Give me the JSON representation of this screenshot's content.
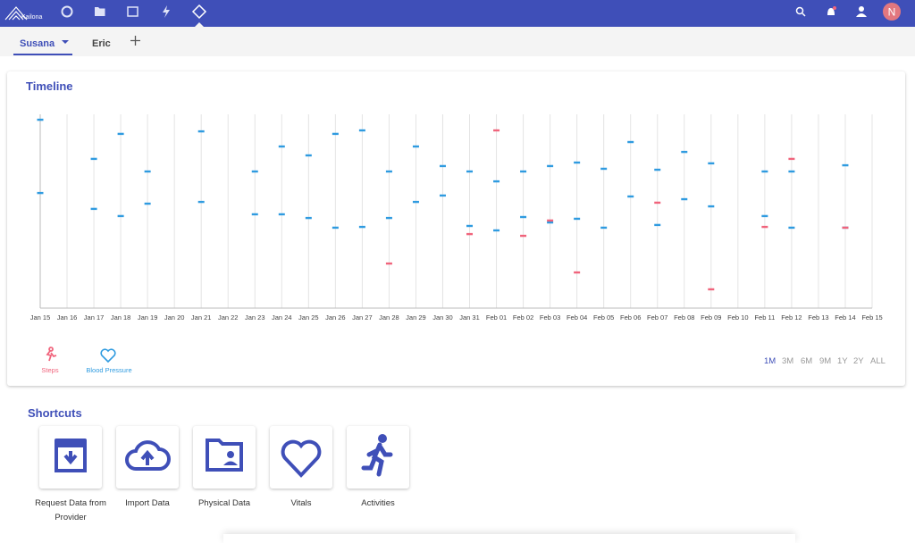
{
  "header": {
    "logo": "Kailona",
    "avatar": "N"
  },
  "tabs": [
    "Susana",
    "Eric"
  ],
  "chart_data": {
    "type": "timeline",
    "title": "Timeline",
    "categories": [
      "Jan 15",
      "Jan 16",
      "Jan 17",
      "Jan 18",
      "Jan 19",
      "Jan 20",
      "Jan 21",
      "Jan 22",
      "Jan 23",
      "Jan 24",
      "Jan 25",
      "Jan 26",
      "Jan 27",
      "Jan 28",
      "Jan 29",
      "Jan 30",
      "Jan 31",
      "Feb 01",
      "Feb 02",
      "Feb 03",
      "Feb 04",
      "Feb 05",
      "Feb 06",
      "Feb 07",
      "Feb 08",
      "Feb 09",
      "Feb 10",
      "Feb 11",
      "Feb 12",
      "Feb 13",
      "Feb 14",
      "Feb 15"
    ],
    "ylim": [
      0,
      100
    ],
    "series": [
      {
        "name": "Steps",
        "color": "#f0647c",
        "x": [
          "Jan 28",
          "Jan 31",
          "Feb 01",
          "Feb 02",
          "Feb 03",
          "Feb 04",
          "Feb 07",
          "Feb 09",
          "Feb 11",
          "Feb 12",
          "Feb 14"
        ],
        "values": [
          23.0,
          38.2,
          91.7,
          37.3,
          45.2,
          18.4,
          54.4,
          9.7,
          41.9,
          77.0,
          41.5
        ]
      },
      {
        "name": "Blood Pressure",
        "color": "#2f9be0",
        "x": [
          "Jan 15",
          "Jan 15",
          "Jan 17",
          "Jan 17",
          "Jan 18",
          "Jan 18",
          "Jan 19",
          "Jan 19",
          "Jan 21",
          "Jan 21",
          "Jan 23",
          "Jan 23",
          "Jan 24",
          "Jan 24",
          "Jan 25",
          "Jan 25",
          "Jan 26",
          "Jan 26",
          "Jan 27",
          "Jan 27",
          "Jan 28",
          "Jan 28",
          "Jan 29",
          "Jan 29",
          "Jan 30",
          "Jan 30",
          "Jan 31",
          "Jan 31",
          "Feb 01",
          "Feb 01",
          "Feb 02",
          "Feb 02",
          "Feb 03",
          "Feb 03",
          "Feb 04",
          "Feb 04",
          "Feb 05",
          "Feb 05",
          "Feb 06",
          "Feb 06",
          "Feb 07",
          "Feb 07",
          "Feb 08",
          "Feb 08",
          "Feb 09",
          "Feb 09",
          "Feb 11",
          "Feb 11",
          "Feb 12",
          "Feb 12",
          "Feb 14",
          "Feb 14"
        ],
        "values": [
          97.2,
          59.4,
          77.0,
          51.2,
          89.9,
          47.5,
          70.5,
          53.9,
          91.2,
          54.8,
          70.5,
          48.4,
          83.4,
          48.4,
          78.8,
          46.5,
          89.9,
          41.5,
          91.7,
          41.9,
          70.5,
          46.5,
          83.4,
          54.8,
          73.3,
          58.1,
          70.5,
          42.4,
          65.4,
          40.1,
          70.5,
          47.0,
          73.3,
          44.2,
          75.1,
          46.1,
          71.9,
          41.5,
          85.7,
          57.6,
          71.4,
          42.9,
          80.6,
          56.2,
          74.7,
          52.5,
          70.5,
          47.5,
          70.5,
          41.5,
          73.7,
          41.5
        ]
      }
    ],
    "ranges": [
      "1M",
      "3M",
      "6M",
      "9M",
      "1Y",
      "2Y",
      "ALL"
    ]
  },
  "shortcuts": {
    "title": "Shortcuts",
    "items": [
      "Request Data from Provider",
      "Import Data",
      "Physical Data",
      "Vitals",
      "Activities"
    ]
  }
}
